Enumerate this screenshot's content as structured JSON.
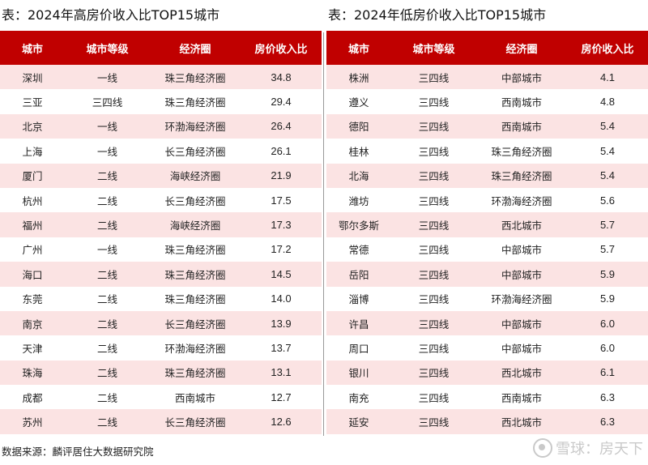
{
  "left": {
    "title": "表：2024年高房价收入比TOP15城市",
    "headers": [
      "城市",
      "城市等级",
      "经济圈",
      "房价收入比"
    ],
    "rows": [
      [
        "深圳",
        "一线",
        "珠三角经济圈",
        "34.8"
      ],
      [
        "三亚",
        "三四线",
        "珠三角经济圈",
        "29.4"
      ],
      [
        "北京",
        "一线",
        "环渤海经济圈",
        "26.4"
      ],
      [
        "上海",
        "一线",
        "长三角经济圈",
        "26.1"
      ],
      [
        "厦门",
        "二线",
        "海峡经济圈",
        "21.9"
      ],
      [
        "杭州",
        "二线",
        "长三角经济圈",
        "17.5"
      ],
      [
        "福州",
        "二线",
        "海峡经济圈",
        "17.3"
      ],
      [
        "广州",
        "一线",
        "珠三角经济圈",
        "17.2"
      ],
      [
        "海口",
        "二线",
        "珠三角经济圈",
        "14.5"
      ],
      [
        "东莞",
        "二线",
        "珠三角经济圈",
        "14.0"
      ],
      [
        "南京",
        "二线",
        "长三角经济圈",
        "13.9"
      ],
      [
        "天津",
        "二线",
        "环渤海经济圈",
        "13.7"
      ],
      [
        "珠海",
        "二线",
        "珠三角经济圈",
        "13.1"
      ],
      [
        "成都",
        "二线",
        "西南城市",
        "12.7"
      ],
      [
        "苏州",
        "二线",
        "长三角经济圈",
        "12.6"
      ]
    ]
  },
  "right": {
    "title": "表：2024年低房价收入比TOP15城市",
    "headers": [
      "城市",
      "城市等级",
      "经济圈",
      "房价收入比"
    ],
    "rows": [
      [
        "株洲",
        "三四线",
        "中部城市",
        "4.1"
      ],
      [
        "遵义",
        "三四线",
        "西南城市",
        "4.8"
      ],
      [
        "德阳",
        "三四线",
        "西南城市",
        "5.4"
      ],
      [
        "桂林",
        "三四线",
        "珠三角经济圈",
        "5.4"
      ],
      [
        "北海",
        "三四线",
        "珠三角经济圈",
        "5.4"
      ],
      [
        "潍坊",
        "三四线",
        "环渤海经济圈",
        "5.6"
      ],
      [
        "鄂尔多斯",
        "三四线",
        "西北城市",
        "5.7"
      ],
      [
        "常德",
        "三四线",
        "中部城市",
        "5.7"
      ],
      [
        "岳阳",
        "三四线",
        "中部城市",
        "5.9"
      ],
      [
        "淄博",
        "三四线",
        "环渤海经济圈",
        "5.9"
      ],
      [
        "许昌",
        "三四线",
        "中部城市",
        "6.0"
      ],
      [
        "周口",
        "三四线",
        "中部城市",
        "6.0"
      ],
      [
        "银川",
        "三四线",
        "西北城市",
        "6.1"
      ],
      [
        "南充",
        "三四线",
        "西南城市",
        "6.3"
      ],
      [
        "延安",
        "三四线",
        "西北城市",
        "6.3"
      ]
    ]
  },
  "source": "数据来源：麟评居住大数据研究院",
  "watermark": "雪球：房天下",
  "colors": {
    "header_bg": "#c00000",
    "stripe_bg": "#fbe3e3"
  }
}
